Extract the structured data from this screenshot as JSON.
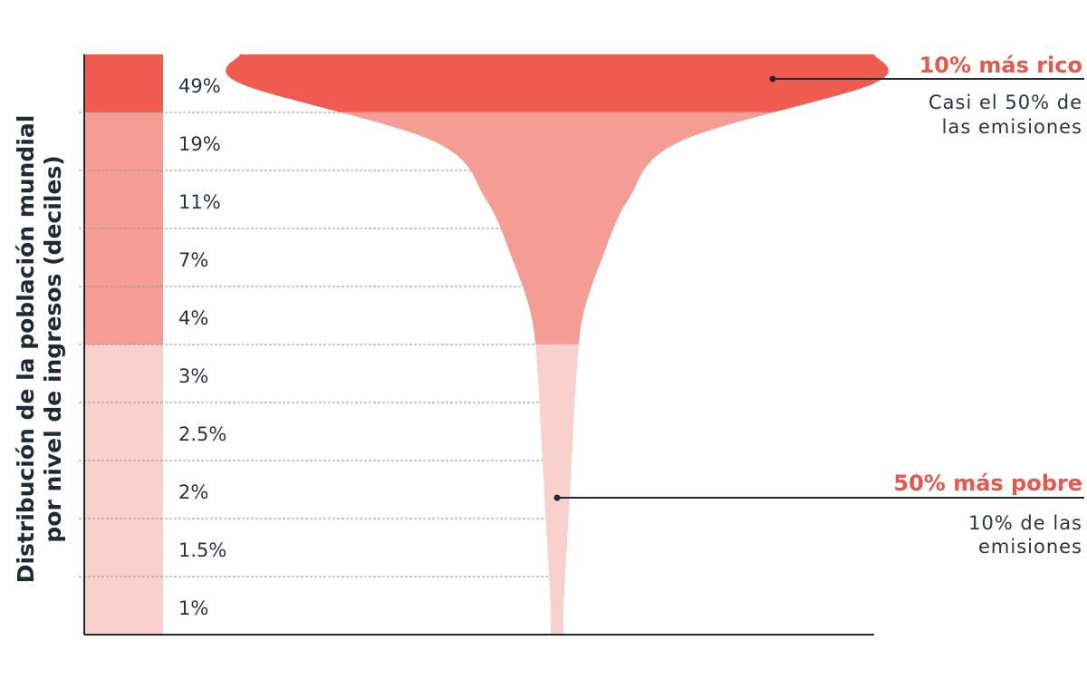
{
  "chart_data": {
    "type": "glass",
    "ylabel": [
      "Distribución de la población mundial",
      "por nivel de ingresos (deciles)"
    ],
    "values": [
      49,
      19,
      11,
      7,
      4,
      3,
      2.5,
      2,
      1.5,
      1
    ],
    "value_labels": [
      "49%",
      "19%",
      "11%",
      "7%",
      "4%",
      "3%",
      "2.5%",
      "2%",
      "1.5%",
      "1%"
    ],
    "colors": [
      "#f05b50",
      "#f59d95",
      "#f59d95",
      "#f59d95",
      "#f59d95",
      "#f9d0cc",
      "#f9d0cc",
      "#f9d0cc",
      "#f9d0cc",
      "#f9d0cc"
    ],
    "annotations": [
      {
        "title": "10% más rico",
        "text": [
          "Casi el 50% de",
          "las emisiones"
        ]
      },
      {
        "title": "50% más pobre",
        "text": [
          "10% de las",
          "emisiones"
        ]
      }
    ]
  }
}
